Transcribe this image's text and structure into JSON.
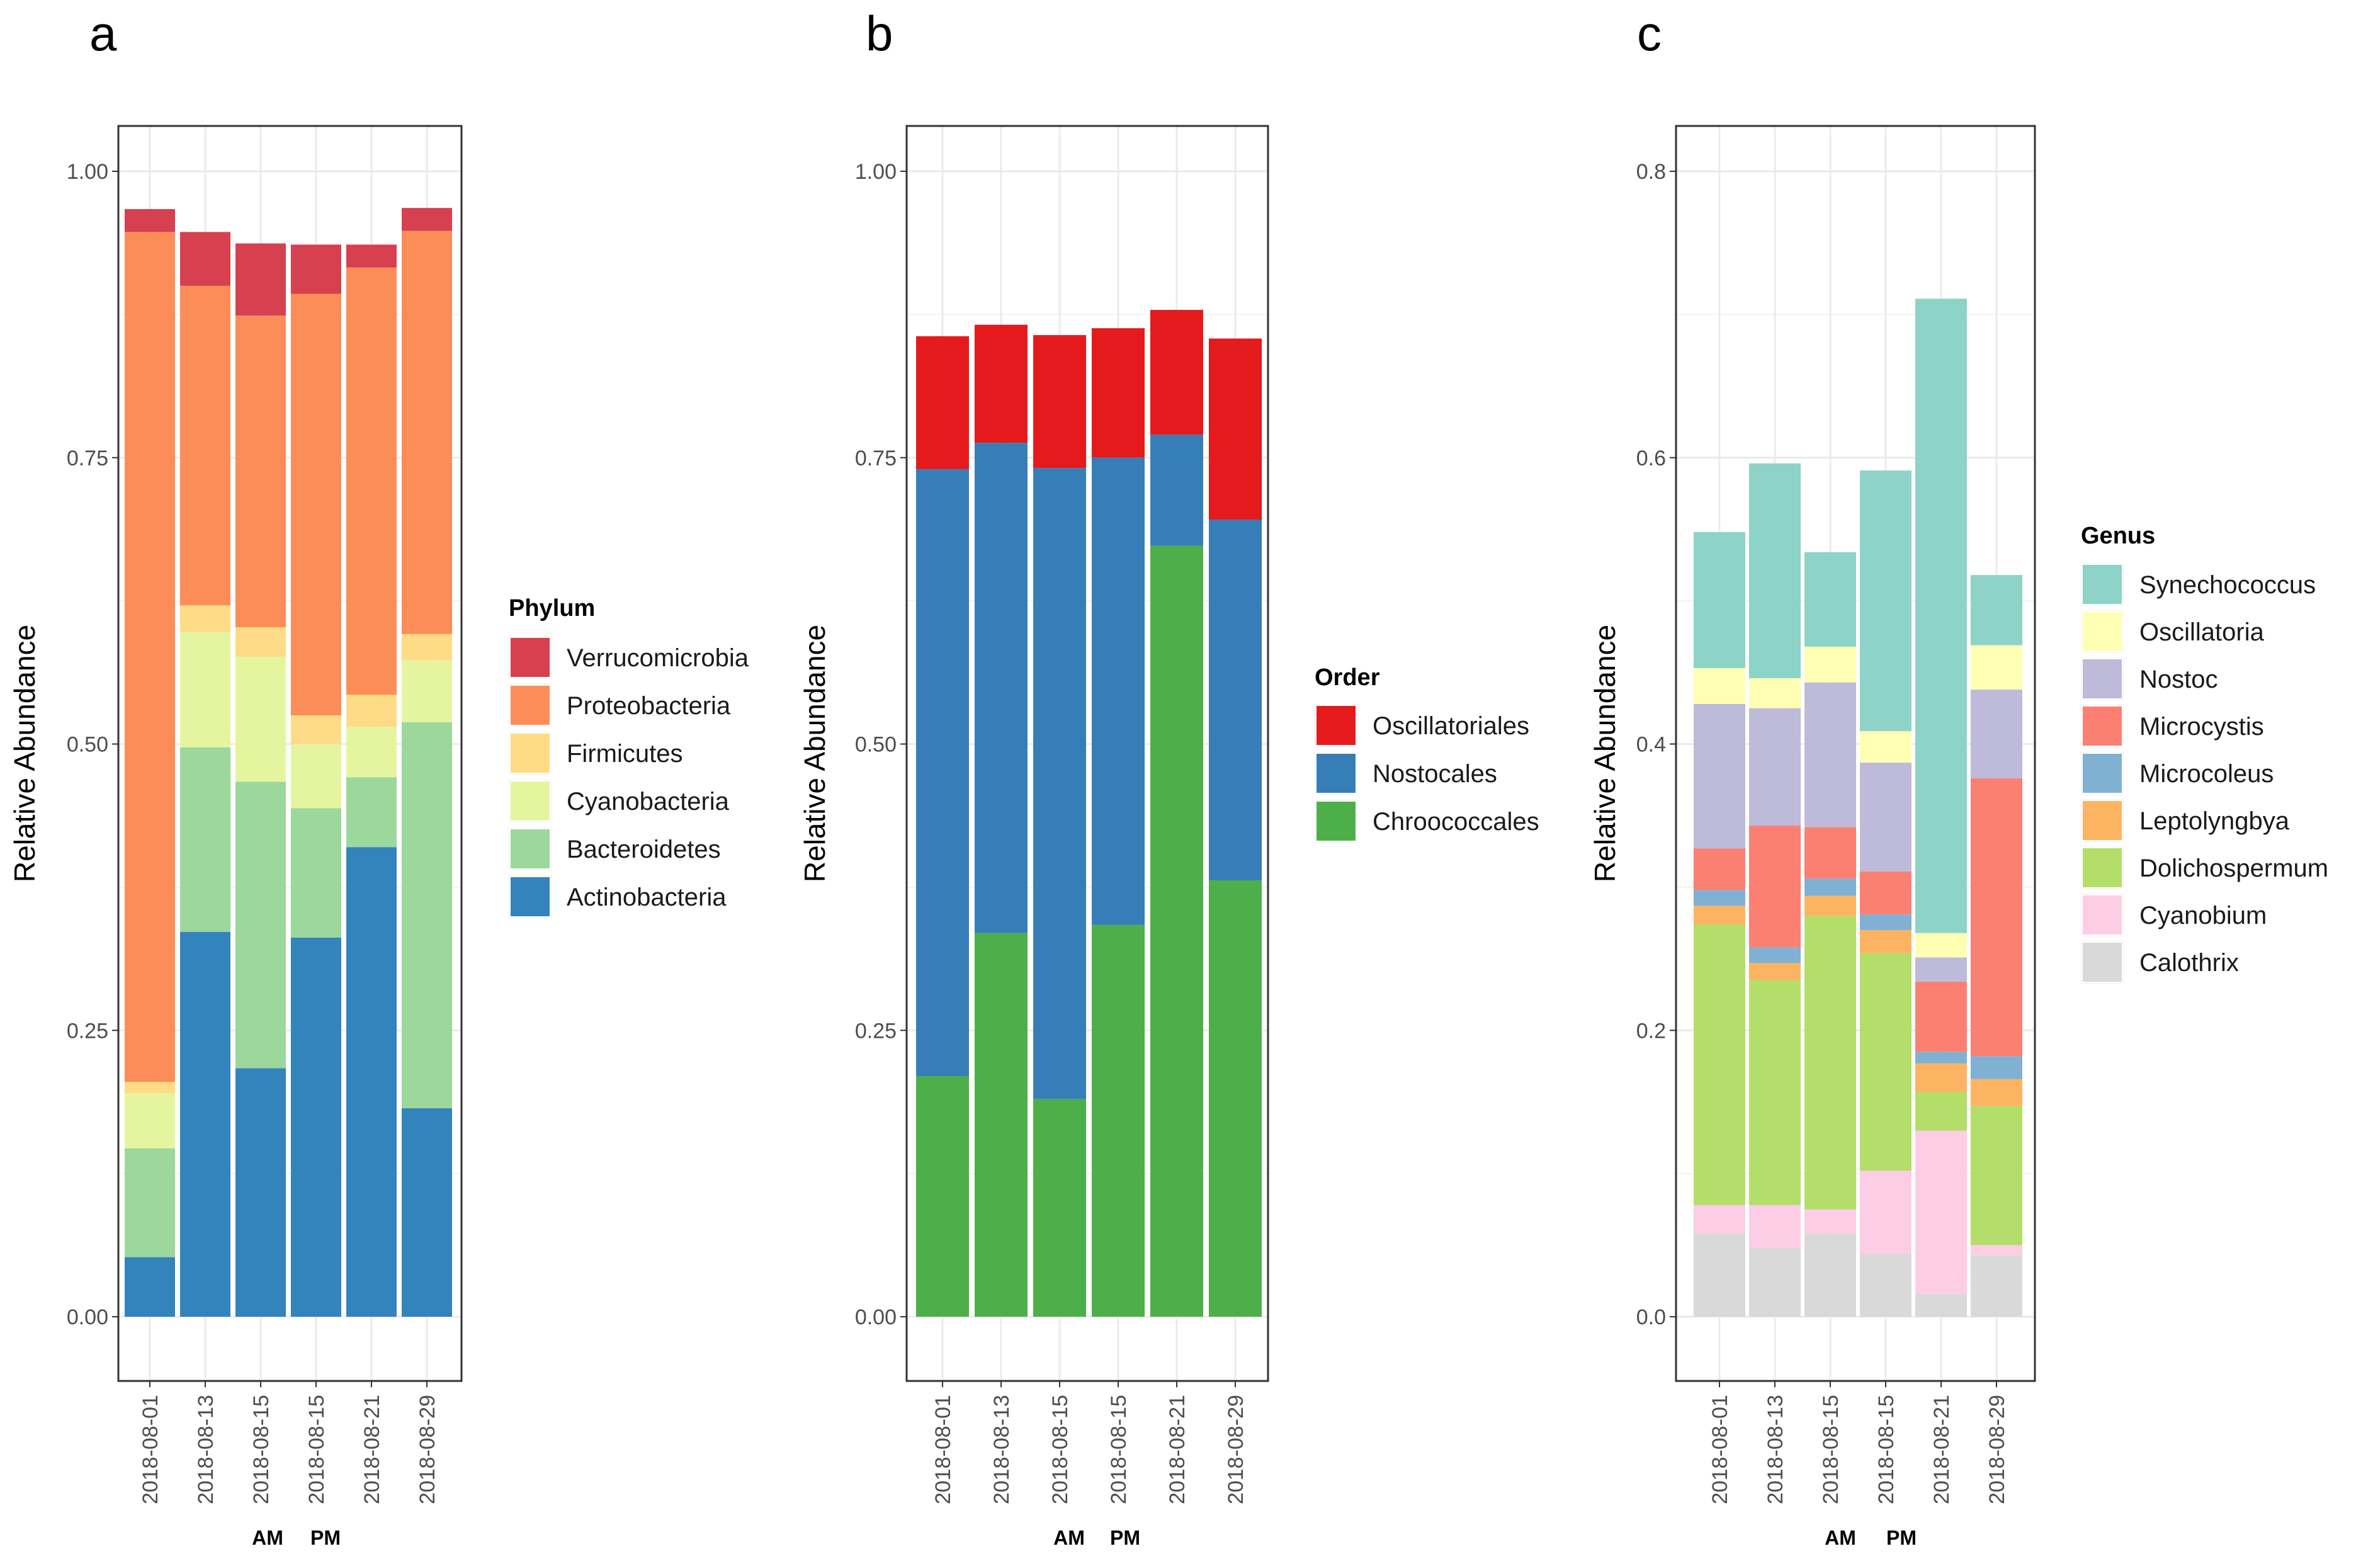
{
  "charts": [
    {
      "panel_label": "a",
      "chart_data": {
        "type": "bar",
        "stacked": true,
        "title": "",
        "xlabel": "",
        "ylabel": "Relative Abundance",
        "categories": [
          "2018-08-01",
          "2018-08-13",
          "2018-08-15",
          "2018-08-15",
          "2018-08-21",
          "2018-08-29"
        ],
        "ylim": [
          0,
          1.0
        ],
        "yticks": [
          0.0,
          0.25,
          0.5,
          0.75,
          1.0
        ],
        "ytick_labels": [
          "0.00",
          "0.25",
          "0.50",
          "0.75",
          "1.00"
        ],
        "grid": true,
        "legend_title": "Phylum",
        "legend": [
          "Verrucomicrobia",
          "Proteobacteria",
          "Firmicutes",
          "Cyanobacteria",
          "Bacteroidetes",
          "Actinobacteria"
        ],
        "series": [
          {
            "name": "Actinobacteria",
            "color": "#3383bd",
            "values": [
              0.052,
              0.336,
              0.217,
              0.331,
              0.41,
              0.182
            ]
          },
          {
            "name": "Bacteroidetes",
            "color": "#9cd79c",
            "values": [
              0.095,
              0.161,
              0.25,
              0.113,
              0.061,
              0.337
            ]
          },
          {
            "name": "Cyanobacteria",
            "color": "#e5f59f",
            "values": [
              0.048,
              0.101,
              0.109,
              0.056,
              0.044,
              0.054
            ]
          },
          {
            "name": "Firmicutes",
            "color": "#fedb86",
            "values": [
              0.01,
              0.023,
              0.026,
              0.025,
              0.028,
              0.023
            ]
          },
          {
            "name": "Proteobacteria",
            "color": "#fc8d59",
            "values": [
              0.742,
              0.279,
              0.272,
              0.368,
              0.373,
              0.352
            ]
          },
          {
            "name": "Verrucomicrobia",
            "color": "#d7404f",
            "values": [
              0.02,
              0.047,
              0.063,
              0.043,
              0.02,
              0.02
            ]
          }
        ],
        "annotations": [
          "AM",
          "PM"
        ]
      }
    },
    {
      "panel_label": "b",
      "chart_data": {
        "type": "bar",
        "stacked": true,
        "title": "",
        "xlabel": "",
        "ylabel": "Relative Abundance",
        "categories": [
          "2018-08-01",
          "2018-08-13",
          "2018-08-15",
          "2018-08-15",
          "2018-08-21",
          "2018-08-29"
        ],
        "ylim": [
          0,
          1.0
        ],
        "yticks": [
          0.0,
          0.25,
          0.5,
          0.75,
          1.0
        ],
        "ytick_labels": [
          "0.00",
          "0.25",
          "0.50",
          "0.75",
          "1.00"
        ],
        "grid": true,
        "legend_title": "Order",
        "legend": [
          "Oscillatoriales",
          "Nostocales",
          "Chroococcales"
        ],
        "series": [
          {
            "name": "Chroococcales",
            "color": "#4daf4a",
            "values": [
              0.21,
              0.335,
              0.19,
              0.342,
              0.673,
              0.381
            ]
          },
          {
            "name": "Nostocales",
            "color": "#377eb8",
            "values": [
              0.53,
              0.428,
              0.551,
              0.408,
              0.097,
              0.315
            ]
          },
          {
            "name": "Oscillatoriales",
            "color": "#e41a1c",
            "values": [
              0.116,
              0.103,
              0.116,
              0.113,
              0.109,
              0.158
            ]
          }
        ],
        "annotations": [
          "AM",
          "PM"
        ]
      }
    },
    {
      "panel_label": "c",
      "chart_data": {
        "type": "bar",
        "stacked": true,
        "title": "",
        "xlabel": "",
        "ylabel": "Relative Abundance",
        "categories": [
          "2018-08-01",
          "2018-08-13",
          "2018-08-15",
          "2018-08-15",
          "2018-08-21",
          "2018-08-29"
        ],
        "ylim": [
          0,
          0.8
        ],
        "yticks": [
          0.0,
          0.2,
          0.4,
          0.6,
          0.8
        ],
        "ytick_labels": [
          "0.0",
          "0.2",
          "0.4",
          "0.6",
          "0.8"
        ],
        "grid": true,
        "legend_title": "Genus",
        "legend": [
          "Synechococcus",
          "Oscillatoria",
          "Nostoc",
          "Microcystis",
          "Microcoleus",
          "Leptolyngbya",
          "Dolichospermum",
          "Cyanobium",
          "Calothrix"
        ],
        "series": [
          {
            "name": "Calothrix",
            "color": "#d9d9d9",
            "values": [
              0.058,
              0.048,
              0.058,
              0.044,
              0.016,
              0.043
            ]
          },
          {
            "name": "Cyanobium",
            "color": "#fccde5",
            "values": [
              0.02,
              0.03,
              0.017,
              0.058,
              0.114,
              0.007
            ]
          },
          {
            "name": "Dolichospermum",
            "color": "#b3de69",
            "values": [
              0.196,
              0.157,
              0.205,
              0.152,
              0.027,
              0.097
            ]
          },
          {
            "name": "Leptolyngbya",
            "color": "#fdb462",
            "values": [
              0.013,
              0.012,
              0.014,
              0.016,
              0.02,
              0.019
            ]
          },
          {
            "name": "Microcoleus",
            "color": "#80b1d3",
            "values": [
              0.011,
              0.011,
              0.012,
              0.011,
              0.008,
              0.016
            ]
          },
          {
            "name": "Microcystis",
            "color": "#fb8072",
            "values": [
              0.029,
              0.085,
              0.036,
              0.03,
              0.049,
              0.194
            ]
          },
          {
            "name": "Nostoc",
            "color": "#bebada",
            "values": [
              0.101,
              0.082,
              0.101,
              0.076,
              0.017,
              0.062
            ]
          },
          {
            "name": "Oscillatoria",
            "color": "#ffffb3",
            "values": [
              0.025,
              0.021,
              0.025,
              0.022,
              0.017,
              0.031
            ]
          },
          {
            "name": "Synechococcus",
            "color": "#8dd3c7",
            "values": [
              0.095,
              0.15,
              0.066,
              0.182,
              0.443,
              0.049
            ]
          }
        ],
        "annotations": [
          "AM",
          "PM"
        ]
      }
    }
  ]
}
